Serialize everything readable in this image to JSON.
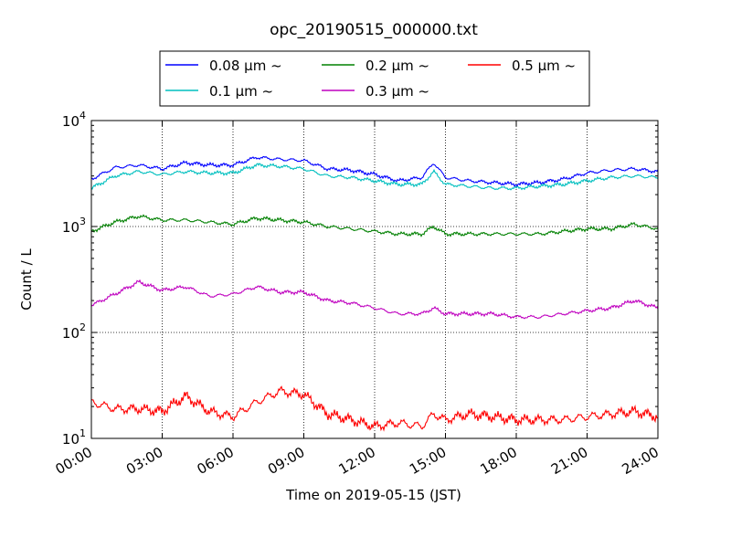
{
  "chart_data": {
    "type": "line",
    "title": "opc_20190515_000000.txt",
    "xlabel": "Time on 2019-05-15 (JST)",
    "ylabel": "Count / L",
    "y_scale": "log",
    "ylim": [
      10,
      10000
    ],
    "xlim": [
      "00:00",
      "24:00"
    ],
    "x_ticks": [
      "00:00",
      "03:00",
      "06:00",
      "09:00",
      "12:00",
      "15:00",
      "18:00",
      "21:00",
      "24:00"
    ],
    "y_ticks": [
      {
        "base": "10",
        "exp": "1"
      },
      {
        "base": "10",
        "exp": "2"
      },
      {
        "base": "10",
        "exp": "3"
      },
      {
        "base": "10",
        "exp": "4"
      }
    ],
    "grid": true,
    "legend_position": "top-center",
    "x_hours": [
      0,
      1,
      2,
      3,
      4,
      5,
      6,
      7,
      8,
      9,
      10,
      11,
      12,
      13,
      14,
      14.5,
      15,
      16,
      17,
      18,
      19,
      20,
      21,
      22,
      23,
      24
    ],
    "series": [
      {
        "name": "0.08 μm ~",
        "color": "#0000ff",
        "values": [
          2800,
          3600,
          3800,
          3500,
          4000,
          3800,
          3800,
          4500,
          4300,
          4200,
          3500,
          3400,
          3100,
          2700,
          2900,
          4000,
          2900,
          2700,
          2600,
          2500,
          2600,
          2800,
          3200,
          3400,
          3500,
          3300
        ]
      },
      {
        "name": "0.1 μm ~",
        "color": "#00bfbf",
        "values": [
          2300,
          3000,
          3300,
          3100,
          3300,
          3200,
          3200,
          3800,
          3700,
          3500,
          3000,
          2900,
          2700,
          2500,
          2500,
          3300,
          2500,
          2400,
          2300,
          2300,
          2400,
          2500,
          2700,
          2900,
          3000,
          2900
        ]
      },
      {
        "name": "0.2 μm ~",
        "color": "#008000",
        "values": [
          900,
          1100,
          1250,
          1150,
          1150,
          1100,
          1050,
          1200,
          1150,
          1100,
          1000,
          950,
          900,
          850,
          850,
          1000,
          850,
          850,
          850,
          850,
          850,
          900,
          950,
          950,
          1050,
          950
        ]
      },
      {
        "name": "0.3 μm ~",
        "color": "#bf00bf",
        "values": [
          180,
          230,
          300,
          250,
          270,
          220,
          230,
          270,
          240,
          240,
          200,
          190,
          170,
          150,
          150,
          170,
          150,
          150,
          150,
          140,
          140,
          150,
          160,
          170,
          200,
          170
        ]
      },
      {
        "name": "0.5 μm ~",
        "color": "#ff0000",
        "values": [
          22,
          19,
          19,
          18,
          25,
          18,
          16,
          22,
          28,
          26,
          17,
          15,
          13,
          14,
          13,
          17,
          15,
          17,
          16,
          15,
          15,
          15,
          16,
          17,
          18,
          16
        ]
      }
    ]
  }
}
